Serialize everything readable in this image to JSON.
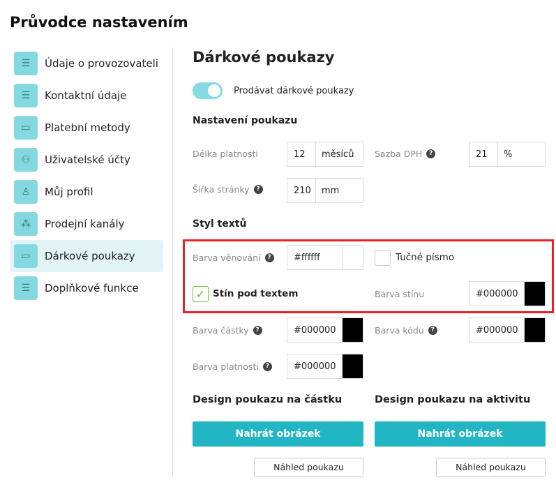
{
  "title": "Průvodce nastavením",
  "sidebar": {
    "items": [
      {
        "label": "Údaje o provozovateli",
        "icon": "settings-sliders-icon"
      },
      {
        "label": "Kontaktní údaje",
        "icon": "settings-sliders-icon"
      },
      {
        "label": "Platební metody",
        "icon": "wallet-icon"
      },
      {
        "label": "Uživatelské účty",
        "icon": "users-icon"
      },
      {
        "label": "Můj profil",
        "icon": "user-icon"
      },
      {
        "label": "Prodejní kanály",
        "icon": "network-icon"
      },
      {
        "label": "Dárkové poukazy",
        "icon": "wallet-icon",
        "active": true
      },
      {
        "label": "Doplňkové funkce",
        "icon": "settings-sliders-icon"
      }
    ]
  },
  "main": {
    "heading": "Dárkové poukazy",
    "sell_toggle": {
      "label": "Prodávat dárkové poukazy",
      "on": true
    },
    "settings_heading": "Nastavení poukazu",
    "validity": {
      "label": "Délka platnosti",
      "value": "12",
      "unit": "měsíců"
    },
    "vat": {
      "label": "Sazba DPH",
      "value": "21",
      "unit": "%"
    },
    "page_width": {
      "label": "Šířka stránky",
      "value": "210",
      "unit": "mm"
    },
    "style_heading": "Styl textů",
    "dedication_color": {
      "label": "Barva věnování",
      "value": "#ffffff",
      "swatch": "#ffffff"
    },
    "bold_font": {
      "label": "Tučné písmo",
      "checked": false
    },
    "text_shadow": {
      "label": "Stín pod textem",
      "checked": true
    },
    "shadow_color": {
      "label": "Barva stínu",
      "value": "#000000",
      "swatch": "#000000"
    },
    "amount_color": {
      "label": "Barva částky",
      "value": "#000000",
      "swatch": "#000000"
    },
    "code_color": {
      "label": "Barva kódu",
      "value": "#000000",
      "swatch": "#000000"
    },
    "validity_color": {
      "label": "Barva platnosti",
      "value": "#000000",
      "swatch": "#000000"
    },
    "design_amount": {
      "heading": "Design poukazu na částku",
      "upload": "Nahrát obrázek",
      "preview": "Náhled poukazu"
    },
    "design_activity": {
      "heading": "Design poukazu na aktivitu",
      "upload": "Nahrát obrázek",
      "preview": "Náhled poukazu"
    }
  },
  "colors": {
    "accent": "#22b6c4",
    "icon_bg": "#84d9e1",
    "highlight": "#e8202a"
  }
}
